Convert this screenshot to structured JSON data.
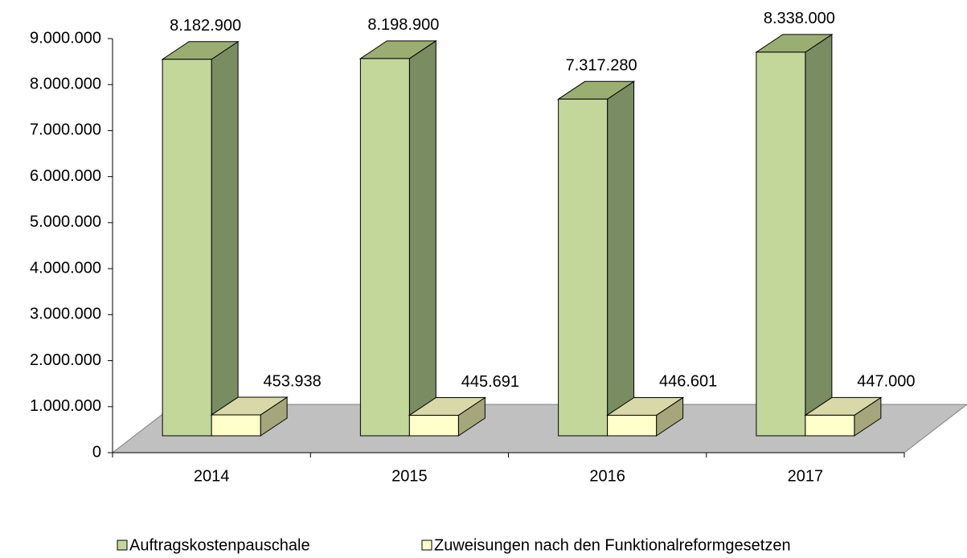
{
  "chart_data": {
    "type": "bar3d",
    "categories": [
      "2014",
      "2015",
      "2016",
      "2017"
    ],
    "series": [
      {
        "name": "Auftragskostenpauschale",
        "color": "#c4d79b",
        "values": [
          8182900,
          8198900,
          7317280,
          8338000
        ],
        "value_labels": [
          "8.182.900",
          "8.198.900",
          "7.317.280",
          "8.338.000"
        ]
      },
      {
        "name": "Zuweisungen nach den Funktionalreformgesetzen",
        "color": "#ffffcc",
        "values": [
          453938,
          445691,
          446601,
          447000
        ],
        "value_labels": [
          "453.938",
          "445.691",
          "446.601",
          "447.000"
        ]
      }
    ],
    "ylim": [
      0,
      9000000
    ],
    "yticks": [
      0,
      {
        "value": 1000000,
        "label": "1.000.000"
      },
      {
        "value": 2000000,
        "label": "2.000.000"
      },
      {
        "value": 3000000,
        "label": "3.000.000"
      },
      {
        "value": 4000000,
        "label": "4.000.000"
      },
      {
        "value": 5000000,
        "label": "5.000.000"
      },
      {
        "value": 6000000,
        "label": "6.000.000"
      },
      {
        "value": 7000000,
        "label": "7.000.000"
      },
      {
        "value": 8000000,
        "label": "8.000.000"
      },
      {
        "value": 9000000,
        "label": "9.000.000"
      }
    ],
    "legend": "bottom"
  }
}
